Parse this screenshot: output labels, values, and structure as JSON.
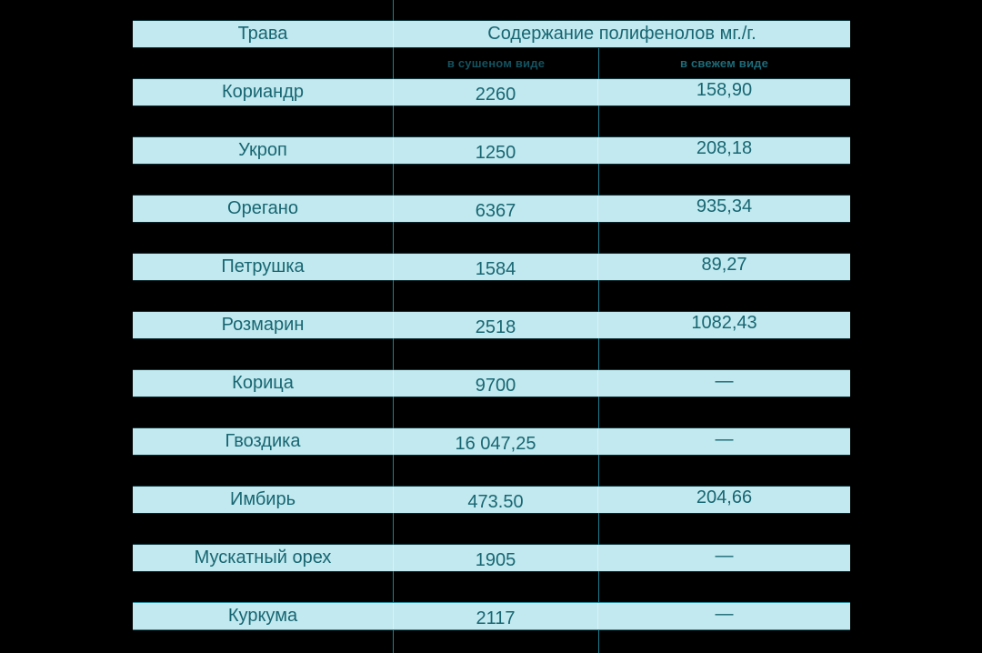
{
  "page": {
    "background_color": "#000000"
  },
  "colors": {
    "bar_fill": "#c1e9ef",
    "text_teal": "#186672",
    "grid_line_teal": "#1e7f8f",
    "inner_divider_light": "#daf3f6",
    "subheader_dried_text": "#14525f",
    "subheader_fresh_text": "#1d6b79"
  },
  "table": {
    "header": {
      "herb": "Трава",
      "polyphenols": "Содержание полифенолов мг./г."
    },
    "subheader": {
      "dried": "в сушеном виде",
      "fresh": "в свежем виде"
    },
    "rows": [
      {
        "name": "Кориандр",
        "dried": "2260",
        "fresh": "158,90"
      },
      {
        "name": "Укроп",
        "dried": "1250",
        "fresh": "208,18"
      },
      {
        "name": "Орегано",
        "dried": "6367",
        "fresh": "935,34"
      },
      {
        "name": "Петрушка",
        "dried": "1584",
        "fresh": "89,27"
      },
      {
        "name": "Розмарин",
        "dried": "2518",
        "fresh": "1082,43"
      },
      {
        "name": "Корица",
        "dried": "9700",
        "fresh": "—"
      },
      {
        "name": "Гвоздика",
        "dried": "16 047,25",
        "fresh": "—"
      },
      {
        "name": "Имбирь",
        "dried": "473.50",
        "fresh": "204,66"
      },
      {
        "name": "Мускатный орех",
        "dried": "1905",
        "fresh": "—"
      },
      {
        "name": "Куркума",
        "dried": "2117",
        "fresh": "—"
      }
    ]
  },
  "chart_data": {
    "type": "table",
    "title": "Содержание полифенолов мг./г.",
    "columns": [
      "Трава",
      "в сушеном виде",
      "в свежем виде"
    ],
    "rows": [
      [
        "Кориандр",
        2260,
        158.9
      ],
      [
        "Укроп",
        1250,
        208.18
      ],
      [
        "Орегано",
        6367,
        935.34
      ],
      [
        "Петрушка",
        1584,
        89.27
      ],
      [
        "Розмарин",
        2518,
        1082.43
      ],
      [
        "Корица",
        9700,
        null
      ],
      [
        "Гвоздика",
        16047.25,
        null
      ],
      [
        "Имбирь",
        473.5,
        204.66
      ],
      [
        "Мускатный орех",
        1905,
        null
      ],
      [
        "Куркума",
        2117,
        null
      ]
    ]
  }
}
